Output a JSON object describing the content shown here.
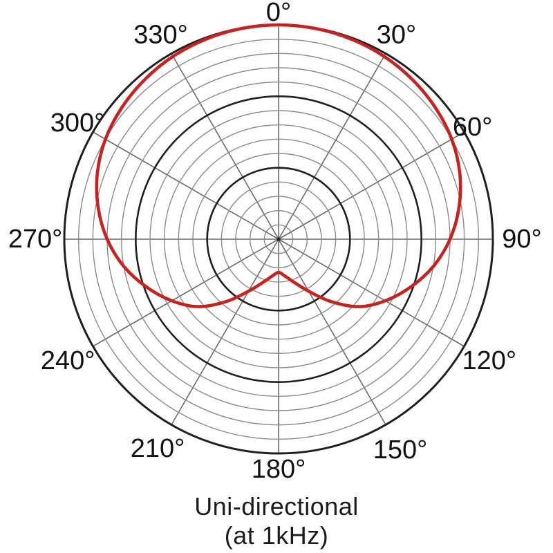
{
  "chart_data": {
    "type": "line",
    "coordinate_system": "polar",
    "title": "Uni-directional",
    "subtitle": "(at 1kHz)",
    "angle_unit": "degrees",
    "angle_direction": "clockwise_from_top",
    "angle_ticks_deg": [
      0,
      30,
      60,
      90,
      120,
      150,
      180,
      210,
      240,
      270,
      300,
      330
    ],
    "angle_tick_labels": [
      "0°",
      "30°",
      "60°",
      "90°",
      "120°",
      "150°",
      "180°",
      "210°",
      "240°",
      "270°",
      "300°",
      "330°"
    ],
    "radial_axis": {
      "min": 0,
      "max": 1.0,
      "gridline_count": 15,
      "bold_every": 5,
      "grid": true,
      "tick_labels": []
    },
    "legend_position": "none",
    "series": [
      {
        "name": "polar-response-1kHz",
        "color": "#c9211e",
        "points_deg_r": [
          [
            0,
            1.0
          ],
          [
            10,
            0.998
          ],
          [
            20,
            0.993
          ],
          [
            30,
            0.985
          ],
          [
            40,
            0.972
          ],
          [
            50,
            0.955
          ],
          [
            60,
            0.933
          ],
          [
            70,
            0.9
          ],
          [
            80,
            0.855
          ],
          [
            90,
            0.8
          ],
          [
            100,
            0.733
          ],
          [
            110,
            0.655
          ],
          [
            120,
            0.575
          ],
          [
            130,
            0.49
          ],
          [
            140,
            0.38
          ],
          [
            150,
            0.28
          ],
          [
            160,
            0.215
          ],
          [
            170,
            0.175
          ],
          [
            180,
            0.155
          ],
          [
            190,
            0.175
          ],
          [
            200,
            0.215
          ],
          [
            210,
            0.28
          ],
          [
            220,
            0.38
          ],
          [
            230,
            0.49
          ],
          [
            240,
            0.575
          ],
          [
            250,
            0.655
          ],
          [
            260,
            0.733
          ],
          [
            270,
            0.8
          ],
          [
            280,
            0.855
          ],
          [
            290,
            0.9
          ],
          [
            300,
            0.933
          ],
          [
            310,
            0.955
          ],
          [
            320,
            0.972
          ],
          [
            330,
            0.985
          ],
          [
            340,
            0.993
          ],
          [
            350,
            0.998
          ]
        ]
      }
    ],
    "colors": {
      "curve": "#c9211e",
      "grid_thin": "#8a8a8a",
      "grid_bold": "#1f1f1f",
      "spoke": "#6a6a6a",
      "tick_label": "#111111",
      "caption": "#1b1b1b",
      "background": "#ffffff"
    }
  }
}
